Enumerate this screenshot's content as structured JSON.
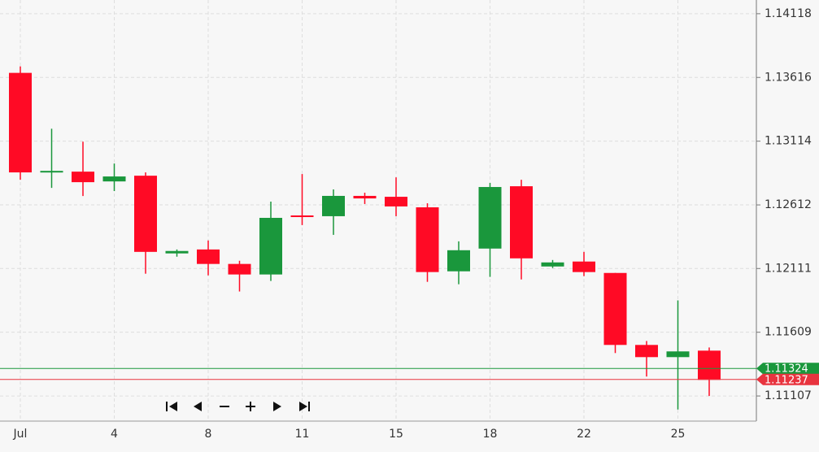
{
  "chart_data": {
    "type": "candlestick",
    "categories": [
      "Jul",
      null,
      null,
      "4",
      null,
      null,
      "8",
      null,
      null,
      "11",
      null,
      null,
      "15",
      null,
      null,
      "18",
      null,
      null,
      "22",
      null,
      null,
      "25",
      null
    ],
    "open": [
      1.13652,
      1.12868,
      1.12874,
      1.12797,
      1.12842,
      1.1223,
      1.12261,
      1.12147,
      1.12064,
      1.12529,
      1.12523,
      1.12683,
      1.12676,
      1.12593,
      1.12089,
      1.12268,
      1.12759,
      1.12127,
      1.12166,
      1.12076,
      1.11509,
      1.11413,
      1.11464
    ],
    "high": [
      1.13703,
      1.13212,
      1.1311,
      1.12938,
      1.12868,
      1.12261,
      1.12332,
      1.12172,
      1.12638,
      1.12855,
      1.12734,
      1.12708,
      1.12829,
      1.12625,
      1.12325,
      1.12785,
      1.1281,
      1.12178,
      1.12242,
      1.12076,
      1.1154,
      1.1186,
      1.11489
    ],
    "low": [
      1.1281,
      1.12746,
      1.12682,
      1.12721,
      1.1207,
      1.12204,
      1.12057,
      1.1193,
      1.12013,
      1.12453,
      1.12376,
      1.12619,
      1.12523,
      1.12006,
      1.11987,
      1.12045,
      1.12025,
      1.12115,
      1.12051,
      1.11445,
      1.1126,
      1.11,
      1.11107
    ],
    "close": [
      1.12868,
      1.1288,
      1.12791,
      1.12836,
      1.12242,
      1.12249,
      1.12147,
      1.12064,
      1.1251,
      1.12517,
      1.12683,
      1.12663,
      1.126,
      1.12083,
      1.12255,
      1.12753,
      1.12191,
      1.12159,
      1.12083,
      1.11509,
      1.11413,
      1.11458,
      1.11234
    ],
    "up_color": "#1a973c",
    "down_color": "#ff0a25",
    "ylim": [
      1.10909,
      1.14226
    ],
    "yticks": [
      1.11107,
      1.11609,
      1.12111,
      1.12612,
      1.13114,
      1.13616,
      1.14118
    ],
    "grid": true,
    "price_lines": [
      {
        "value": 1.11324,
        "color": "#1a973c"
      },
      {
        "value": 1.11237,
        "color": "#e8343f"
      }
    ]
  }
}
